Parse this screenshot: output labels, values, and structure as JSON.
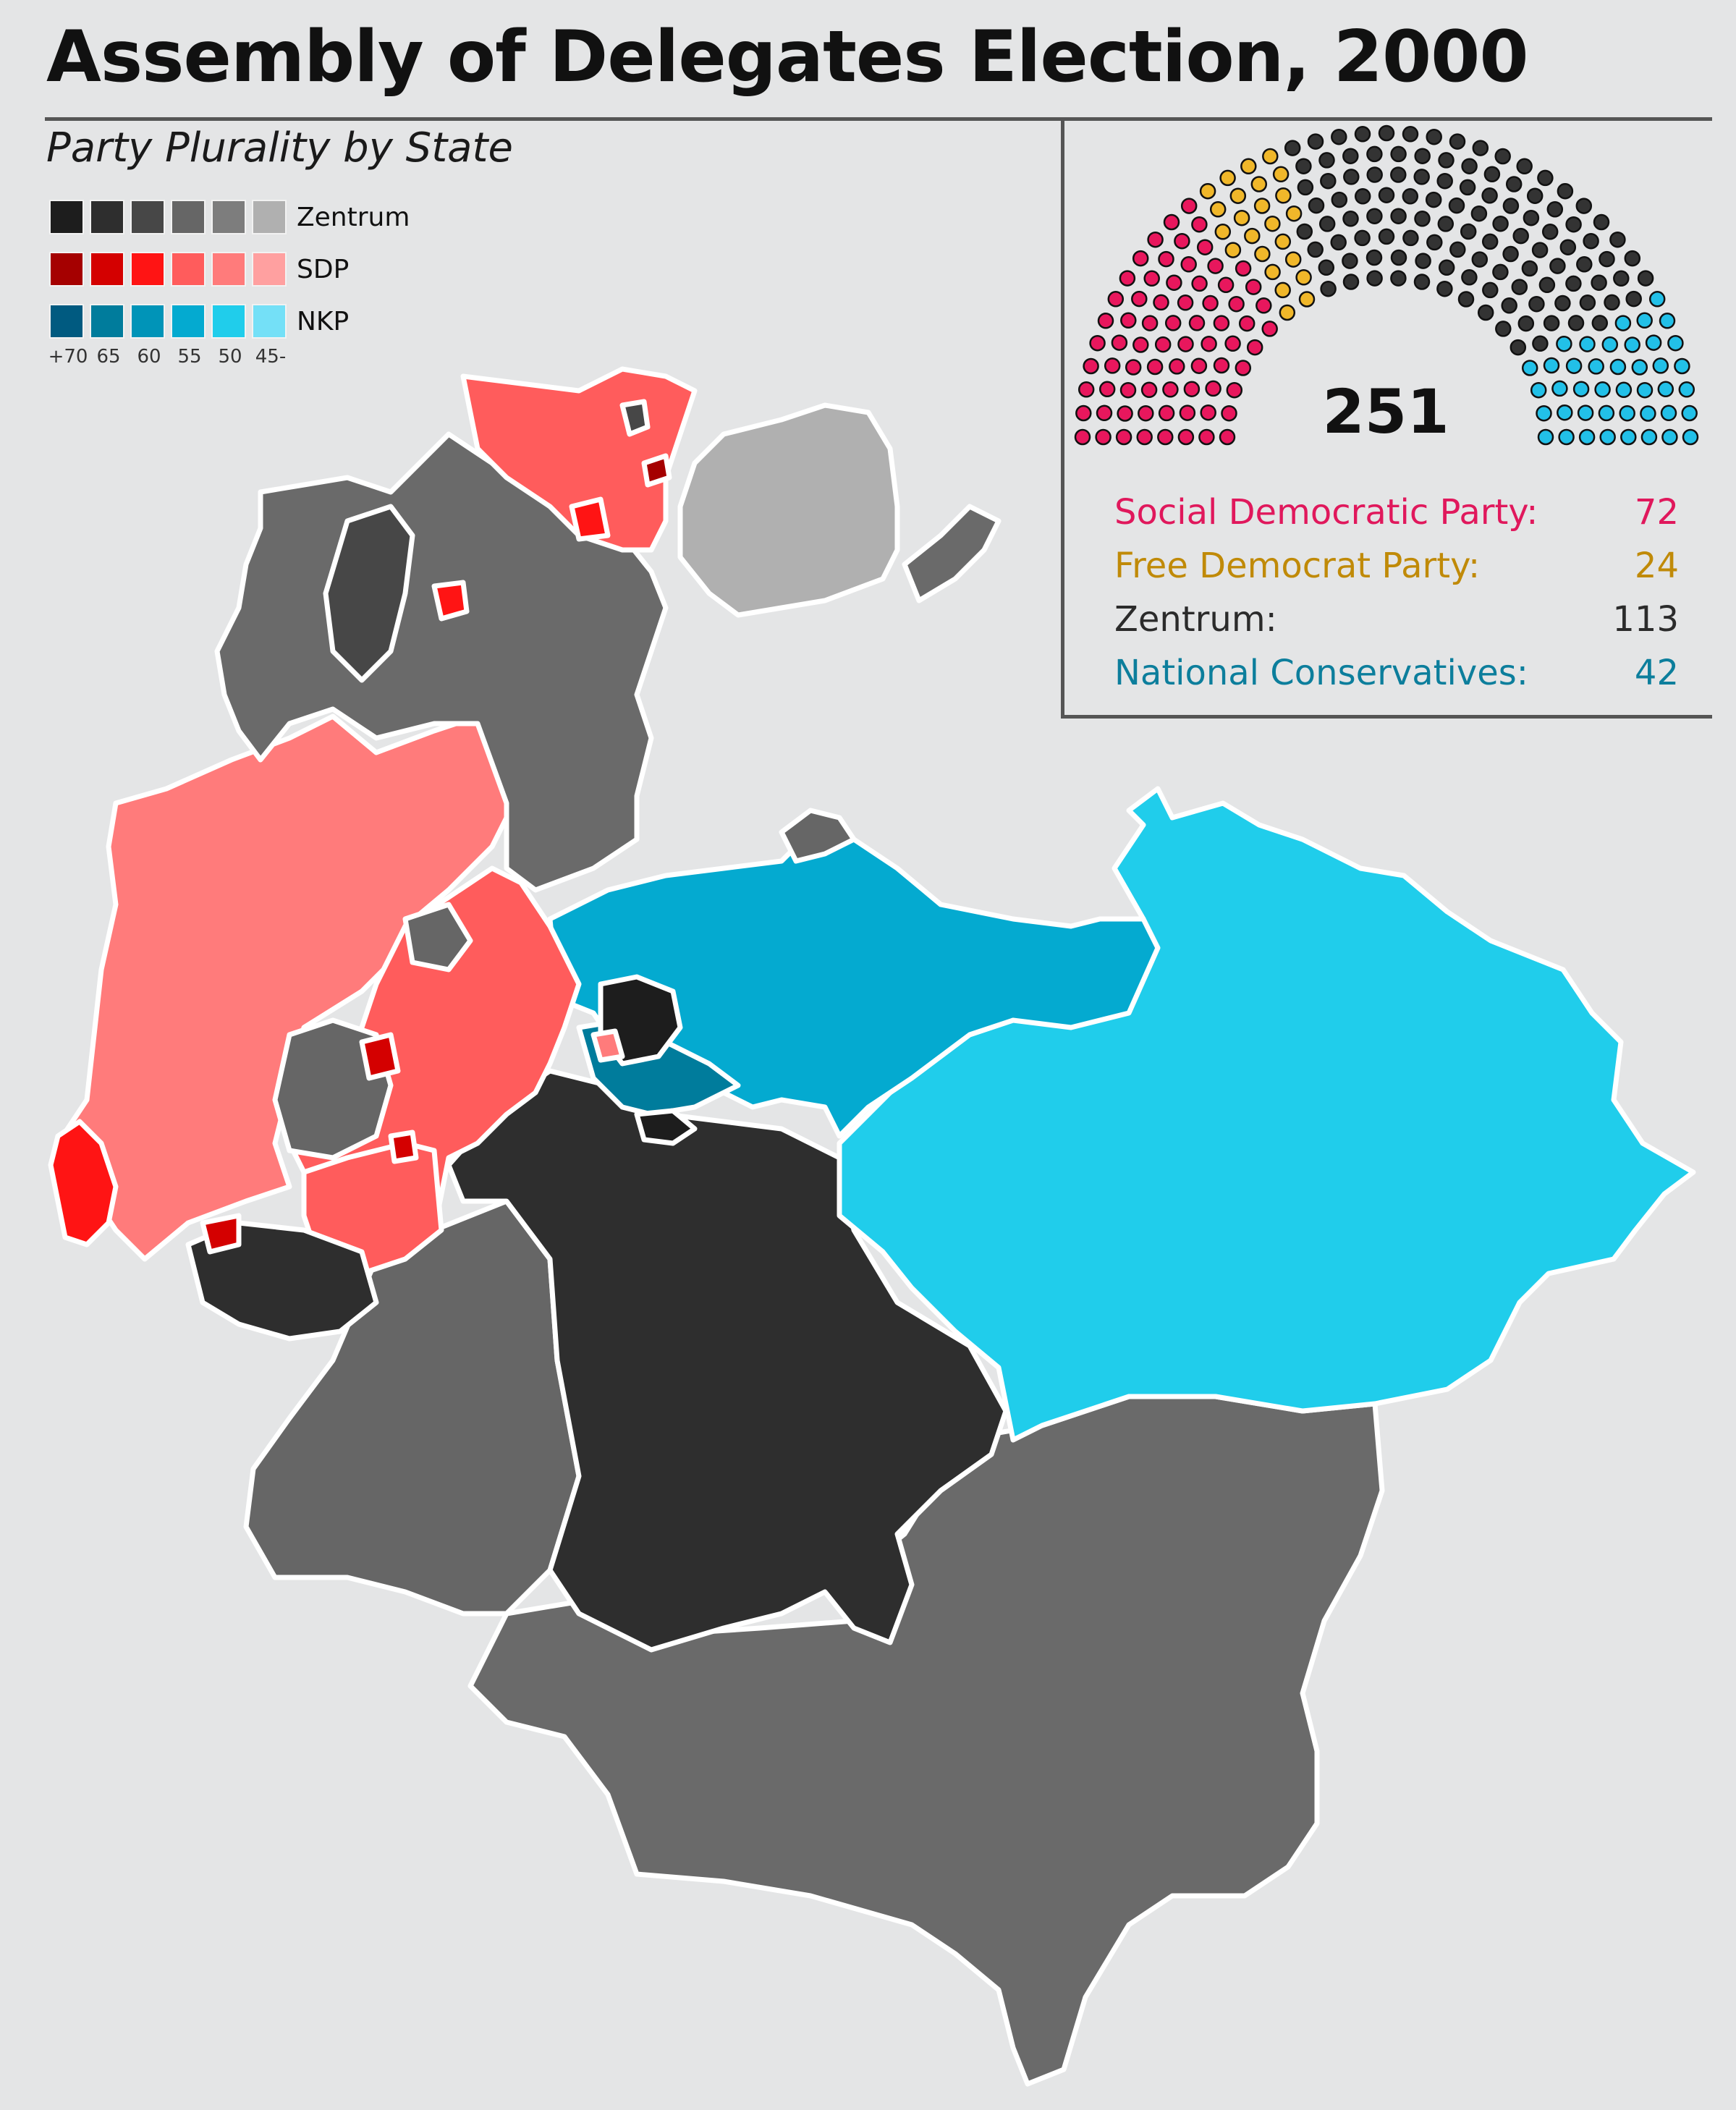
{
  "title": "Assembly of Delegates Election, 2000",
  "subtitle": "Party Plurality by State",
  "legend": {
    "rows": [
      {
        "label": "Zentrum",
        "colors": [
          "#1d1d1d",
          "#2e2e2e",
          "#474747",
          "#666666",
          "#7d7d7d",
          "#b0b0b0"
        ]
      },
      {
        "label": "SDP",
        "colors": [
          "#a50000",
          "#d40000",
          "#ff1414",
          "#ff5c5c",
          "#ff7b7b",
          "#ffa0a0"
        ]
      },
      {
        "label": "NKP",
        "colors": [
          "#005a80",
          "#007c9c",
          "#0094b8",
          "#04aad0",
          "#20cdeb",
          "#74e0f7"
        ]
      }
    ],
    "ticks": [
      "+70",
      "65",
      "60",
      "55",
      "50",
      "45-"
    ]
  },
  "parliament": {
    "total": "251",
    "parties": [
      {
        "name": "Social Democratic Party:",
        "seats": "72",
        "color": "#e0185c"
      },
      {
        "name": "Free Democrat Party:",
        "seats": "24",
        "color": "#c08a08"
      },
      {
        "name": "Zentrum:",
        "seats": "113",
        "color": "#2b2b2b"
      },
      {
        "name": "National Conservatives:",
        "seats": "42",
        "color": "#0c7e9c"
      }
    ],
    "seat_fill": {
      "sdp": "#e8175d",
      "fdp": "#f0b72a",
      "zentrum": "#333333",
      "nkp": "#22c0e8"
    }
  },
  "map_colors": {
    "north_sdp": "#ff5c5c",
    "northeast_grey": "#b0b0b0",
    "northwest_grey": "#6a6a6a",
    "west_sdp": "#ff7b7b",
    "central_sdp": "#ff5c5c",
    "central_nkp": "#04aad0",
    "east_nkp": "#20cdeb",
    "south_dark": "#2e2e2e",
    "southwest_grey": "#666666",
    "south_grey": "#6a6a6a",
    "luxemburg_red": "#ff1414",
    "border": "#ffffff",
    "background": "#e4e5e6"
  }
}
